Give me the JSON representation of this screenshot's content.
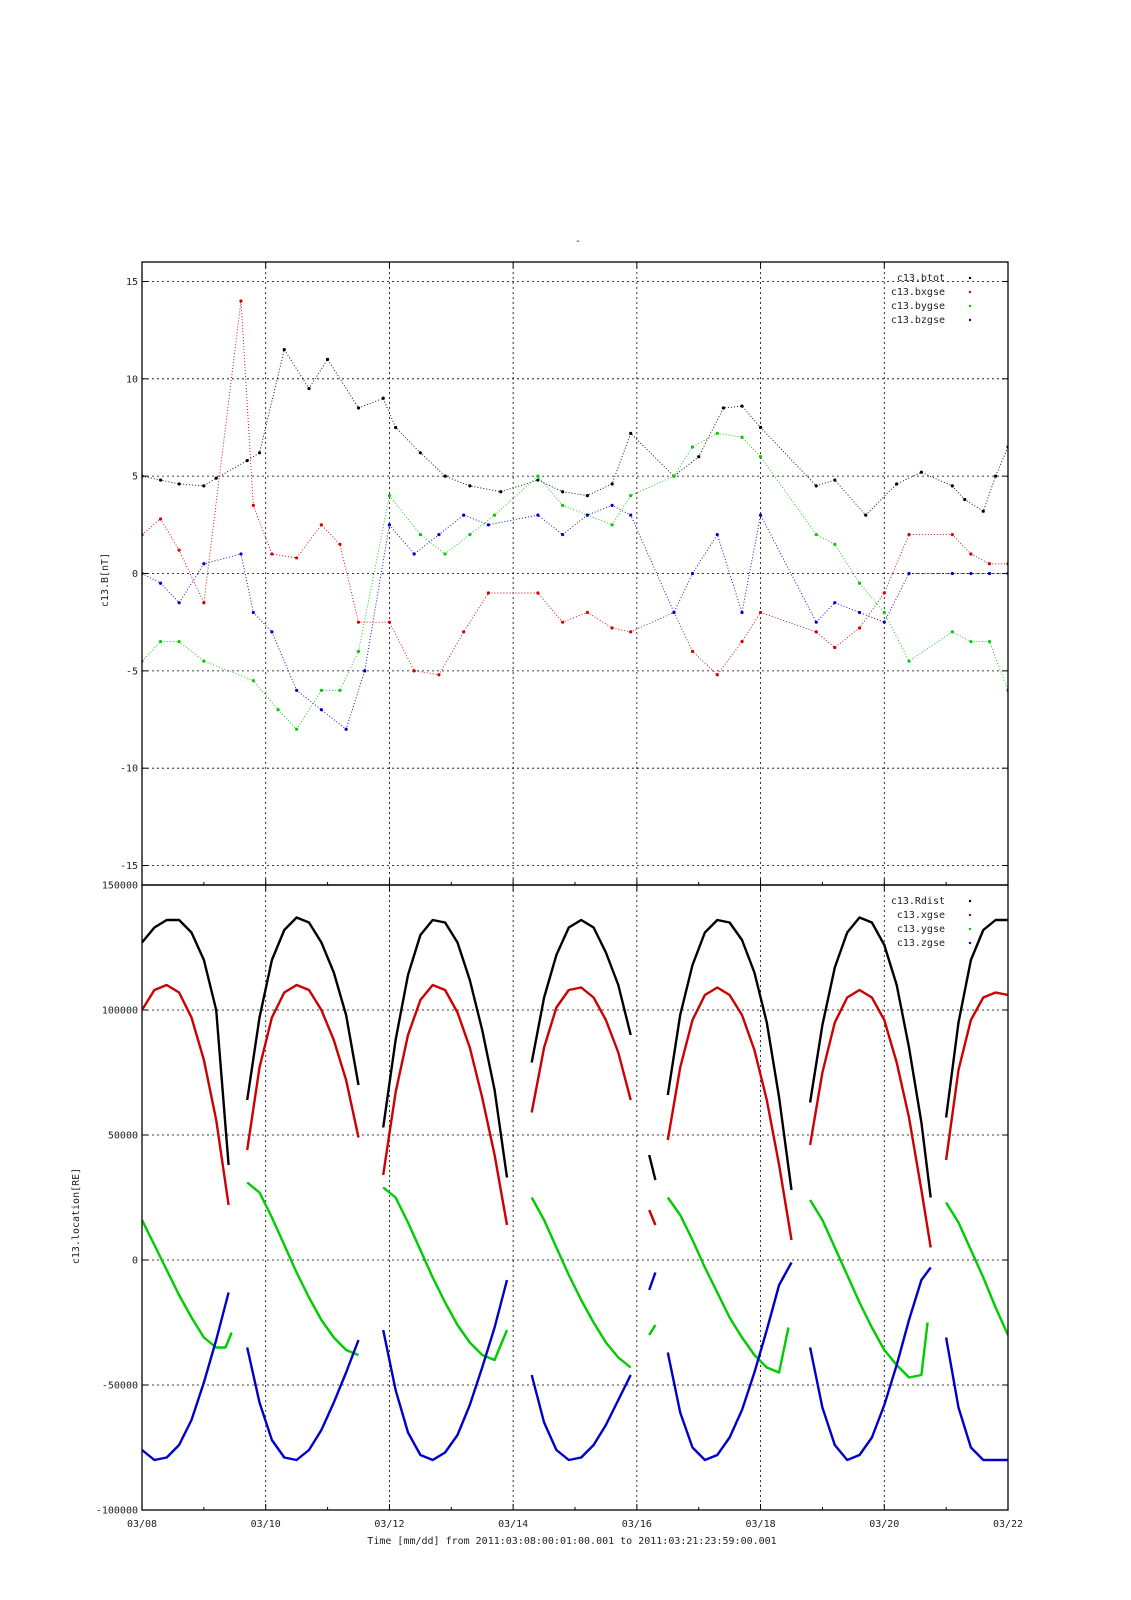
{
  "figure": {
    "title_mark": "-",
    "time_axis": {
      "tick_labels": [
        "03/08",
        "03/10",
        "03/12",
        "03/14",
        "03/16",
        "03/18",
        "03/20",
        "03/22"
      ],
      "label": "Time [mm/dd]  from 2011:03:08:00:01:00.001  to  2011:03:21:23:59:00.001",
      "start_day": 8,
      "end_day": 22
    }
  },
  "chart_data": [
    {
      "type": "scatter",
      "ylabel": "c13.B[nT]",
      "ylim": [
        -16,
        16
      ],
      "y_ticks": [
        -15,
        -10,
        -5,
        0,
        5,
        10,
        15
      ],
      "y_tick_labels": [
        "-15",
        "-10",
        "-5",
        "0",
        "5",
        "10",
        "15"
      ],
      "grid": true,
      "legend_position": "top-right",
      "series": [
        {
          "name": "c13.btot",
          "color": "#000000",
          "x": [
            8.0,
            8.3,
            8.6,
            9.0,
            9.2,
            9.7,
            9.9,
            10.3,
            10.7,
            11.0,
            11.5,
            11.9,
            12.1,
            12.5,
            12.9,
            13.3,
            13.8,
            14.4,
            14.8,
            15.2,
            15.6,
            15.9,
            16.6,
            17.0,
            17.4,
            17.7,
            18.0,
            18.9,
            19.2,
            19.7,
            20.2,
            20.6,
            21.1,
            21.3,
            21.6,
            21.8,
            22.0
          ],
          "y": [
            5.0,
            4.8,
            4.6,
            4.5,
            4.9,
            5.8,
            6.2,
            11.5,
            9.5,
            11.0,
            8.5,
            9.0,
            7.5,
            6.2,
            5.0,
            4.5,
            4.2,
            4.8,
            4.2,
            4.0,
            4.6,
            7.2,
            5.0,
            6.0,
            8.5,
            8.6,
            7.5,
            4.5,
            4.8,
            3.0,
            4.6,
            5.2,
            4.5,
            3.8,
            3.2,
            5.0,
            6.5
          ]
        },
        {
          "name": "c13.bxgse",
          "color": "#d40000",
          "x": [
            8.0,
            8.3,
            8.6,
            9.0,
            9.6,
            9.8,
            10.1,
            10.5,
            10.9,
            11.2,
            11.5,
            12.0,
            12.4,
            12.8,
            13.2,
            13.6,
            14.4,
            14.8,
            15.2,
            15.6,
            15.9,
            16.6,
            16.9,
            17.3,
            17.7,
            18.0,
            18.9,
            19.2,
            19.6,
            20.0,
            20.4,
            21.1,
            21.4,
            21.7,
            22.0
          ],
          "y": [
            2.0,
            2.8,
            1.2,
            -1.5,
            14.0,
            3.5,
            1.0,
            0.8,
            2.5,
            1.5,
            -2.5,
            -2.5,
            -5.0,
            -5.2,
            -3.0,
            -1.0,
            -1.0,
            -2.5,
            -2.0,
            -2.8,
            -3.0,
            -2.0,
            -4.0,
            -5.2,
            -3.5,
            -2.0,
            -3.0,
            -3.8,
            -2.8,
            -1.0,
            2.0,
            2.0,
            1.0,
            0.5,
            0.5
          ]
        },
        {
          "name": "c13.bygse",
          "color": "#00cc00",
          "x": [
            8.0,
            8.3,
            8.6,
            9.0,
            9.8,
            10.2,
            10.5,
            10.9,
            11.2,
            11.5,
            12.0,
            12.5,
            12.9,
            13.3,
            13.7,
            14.4,
            14.8,
            15.2,
            15.6,
            15.9,
            16.6,
            16.9,
            17.3,
            17.7,
            18.0,
            18.9,
            19.2,
            19.6,
            20.0,
            20.4,
            21.1,
            21.4,
            21.7,
            22.0
          ],
          "y": [
            -4.5,
            -3.5,
            -3.5,
            -4.5,
            -5.5,
            -7.0,
            -8.0,
            -6.0,
            -6.0,
            -4.0,
            4.0,
            2.0,
            1.0,
            2.0,
            3.0,
            5.0,
            3.5,
            3.0,
            2.5,
            4.0,
            5.0,
            6.5,
            7.2,
            7.0,
            6.0,
            2.0,
            1.5,
            -0.5,
            -2.0,
            -4.5,
            -3.0,
            -3.5,
            -3.5,
            -6.0
          ]
        },
        {
          "name": "c13.bzgse",
          "color": "#0000cc",
          "x": [
            8.0,
            8.3,
            8.6,
            9.0,
            9.6,
            9.8,
            10.1,
            10.5,
            10.9,
            11.3,
            11.6,
            12.0,
            12.4,
            12.8,
            13.2,
            13.6,
            14.4,
            14.8,
            15.2,
            15.6,
            15.9,
            16.6,
            16.9,
            17.3,
            17.7,
            18.0,
            18.9,
            19.2,
            19.6,
            20.0,
            20.4,
            21.1,
            21.4,
            21.7,
            22.0
          ],
          "y": [
            0.0,
            -0.5,
            -1.5,
            0.5,
            1.0,
            -2.0,
            -3.0,
            -6.0,
            -7.0,
            -8.0,
            -5.0,
            2.5,
            1.0,
            2.0,
            3.0,
            2.5,
            3.0,
            2.0,
            3.0,
            3.5,
            3.0,
            -2.0,
            0.0,
            2.0,
            -2.0,
            3.0,
            -2.5,
            -1.5,
            -2.0,
            -2.5,
            0.0,
            0.0,
            0.0,
            0.0,
            0.0
          ]
        }
      ]
    },
    {
      "type": "scatter",
      "ylabel": "c13.location[RE]",
      "ylim": [
        -100000,
        150000
      ],
      "y_ticks": [
        -100000,
        -50000,
        0,
        50000,
        100000,
        150000
      ],
      "y_tick_labels": [
        "-100000",
        "-50000",
        "0",
        "50000",
        "100000",
        "150000"
      ],
      "grid": true,
      "legend_position": "top-right",
      "series": [
        {
          "name": "c13.Rdist",
          "color": "#000000",
          "x": [
            8.0,
            8.2,
            8.4,
            8.6,
            8.8,
            9.0,
            9.2,
            9.4,
            null,
            9.7,
            9.9,
            10.1,
            10.3,
            10.5,
            10.7,
            10.9,
            11.1,
            11.3,
            11.5,
            null,
            11.9,
            12.1,
            12.3,
            12.5,
            12.7,
            12.9,
            13.1,
            13.3,
            13.5,
            13.7,
            13.9,
            null,
            14.3,
            14.5,
            14.7,
            14.9,
            15.1,
            15.3,
            15.5,
            15.7,
            15.9,
            null,
            16.2,
            16.3,
            null,
            16.5,
            16.7,
            16.9,
            17.1,
            17.3,
            17.5,
            17.7,
            17.9,
            18.1,
            18.3,
            18.5,
            null,
            18.8,
            19.0,
            19.2,
            19.4,
            19.6,
            19.8,
            20.0,
            20.2,
            20.4,
            20.6,
            20.75,
            null,
            21.0,
            21.2,
            21.4,
            21.6,
            21.8,
            22.0
          ],
          "y": [
            127000,
            133000,
            136000,
            136000,
            131000,
            120000,
            100000,
            38000,
            null,
            64000,
            97000,
            120000,
            132000,
            137000,
            135000,
            127000,
            115000,
            98000,
            70000,
            null,
            53000,
            88000,
            114000,
            130000,
            136000,
            135000,
            127000,
            112000,
            92000,
            68000,
            33000,
            null,
            79000,
            105000,
            122000,
            133000,
            136000,
            133000,
            123000,
            110000,
            90000,
            null,
            42000,
            32000,
            null,
            66000,
            98000,
            118000,
            131000,
            136000,
            135000,
            128000,
            115000,
            95000,
            65000,
            28000,
            null,
            63000,
            94000,
            117000,
            131000,
            137000,
            135000,
            126000,
            110000,
            85000,
            55000,
            25000,
            null,
            57000,
            95000,
            120000,
            132000,
            136000,
            136000
          ]
        },
        {
          "name": "c13.xgse",
          "color": "#cc0000",
          "x": [
            8.0,
            8.2,
            8.4,
            8.6,
            8.8,
            9.0,
            9.2,
            9.4,
            null,
            9.7,
            9.9,
            10.1,
            10.3,
            10.5,
            10.7,
            10.9,
            11.1,
            11.3,
            11.5,
            null,
            11.9,
            12.1,
            12.3,
            12.5,
            12.7,
            12.9,
            13.1,
            13.3,
            13.5,
            13.7,
            13.9,
            null,
            14.3,
            14.5,
            14.7,
            14.9,
            15.1,
            15.3,
            15.5,
            15.7,
            15.9,
            null,
            16.2,
            16.3,
            null,
            16.5,
            16.7,
            16.9,
            17.1,
            17.3,
            17.5,
            17.7,
            17.9,
            18.1,
            18.3,
            18.5,
            null,
            18.8,
            19.0,
            19.2,
            19.4,
            19.6,
            19.8,
            20.0,
            20.2,
            20.4,
            20.6,
            20.75,
            null,
            21.0,
            21.2,
            21.4,
            21.6,
            21.8,
            22.0
          ],
          "y": [
            100000,
            108000,
            110000,
            107000,
            97000,
            80000,
            56000,
            22000,
            null,
            44000,
            77000,
            97000,
            107000,
            110000,
            108000,
            100000,
            88000,
            72000,
            49000,
            null,
            34000,
            67000,
            90000,
            104000,
            110000,
            108000,
            99000,
            85000,
            65000,
            42000,
            14000,
            null,
            59000,
            85000,
            101000,
            108000,
            109000,
            105000,
            96000,
            83000,
            64000,
            null,
            20000,
            14000,
            null,
            48000,
            77000,
            96000,
            106000,
            109000,
            106000,
            98000,
            84000,
            64000,
            38000,
            8000,
            null,
            46000,
            75000,
            95000,
            105000,
            108000,
            105000,
            96000,
            79000,
            57000,
            28000,
            5000,
            null,
            40000,
            76000,
            96000,
            105000,
            107000,
            106000
          ]
        },
        {
          "name": "c13.ygse",
          "color": "#00cc00",
          "x": [
            8.0,
            8.2,
            8.4,
            8.6,
            8.8,
            9.0,
            9.2,
            9.35,
            9.45,
            null,
            9.7,
            9.9,
            10.1,
            10.3,
            10.5,
            10.7,
            10.9,
            11.1,
            11.3,
            11.5,
            null,
            11.9,
            12.1,
            12.3,
            12.5,
            12.7,
            12.9,
            13.1,
            13.3,
            13.5,
            13.7,
            13.9,
            null,
            14.3,
            14.5,
            14.7,
            14.9,
            15.1,
            15.3,
            15.5,
            15.7,
            15.9,
            null,
            16.2,
            16.3,
            null,
            16.5,
            16.7,
            16.9,
            17.1,
            17.3,
            17.5,
            17.7,
            17.9,
            18.1,
            18.3,
            18.45,
            null,
            18.8,
            19.0,
            19.2,
            19.4,
            19.6,
            19.8,
            20.0,
            20.2,
            20.4,
            20.6,
            20.7,
            null,
            21.0,
            21.2,
            21.4,
            21.6,
            21.8,
            22.0
          ],
          "y": [
            16000,
            6000,
            -4000,
            -14000,
            -23000,
            -31000,
            -35000,
            -35000,
            -29000,
            null,
            31000,
            27000,
            17000,
            6000,
            -5000,
            -15000,
            -24000,
            -31000,
            -36000,
            -38000,
            null,
            29000,
            25000,
            15000,
            4000,
            -7000,
            -17000,
            -26000,
            -33000,
            -38000,
            -40000,
            -28000,
            null,
            25000,
            16000,
            5000,
            -6000,
            -16000,
            -25000,
            -33000,
            -39000,
            -43000,
            null,
            -30000,
            -26000,
            null,
            25000,
            18000,
            8000,
            -3000,
            -13000,
            -23000,
            -31000,
            -38000,
            -43000,
            -45000,
            -27000,
            null,
            24000,
            16000,
            5000,
            -6000,
            -17000,
            -27000,
            -36000,
            -42000,
            -47000,
            -46000,
            -25000,
            null,
            23000,
            15000,
            4000,
            -7000,
            -19000,
            -30000
          ]
        },
        {
          "name": "c13.zgse",
          "color": "#0000cc",
          "x": [
            8.0,
            8.2,
            8.4,
            8.6,
            8.8,
            9.0,
            9.2,
            9.4,
            null,
            9.7,
            9.9,
            10.1,
            10.3,
            10.5,
            10.7,
            10.9,
            11.1,
            11.3,
            11.5,
            null,
            11.9,
            12.1,
            12.3,
            12.5,
            12.7,
            12.9,
            13.1,
            13.3,
            13.5,
            13.7,
            13.9,
            null,
            14.3,
            14.5,
            14.7,
            14.9,
            15.1,
            15.3,
            15.5,
            15.7,
            15.9,
            null,
            16.2,
            16.3,
            null,
            16.5,
            16.7,
            16.9,
            17.1,
            17.3,
            17.5,
            17.7,
            17.9,
            18.1,
            18.3,
            18.5,
            null,
            18.8,
            19.0,
            19.2,
            19.4,
            19.6,
            19.8,
            20.0,
            20.2,
            20.4,
            20.6,
            20.75,
            null,
            21.0,
            21.2,
            21.4,
            21.6,
            21.8,
            22.0
          ],
          "y": [
            -76000,
            -80000,
            -79000,
            -74000,
            -64000,
            -49000,
            -32000,
            -13000,
            null,
            -35000,
            -57000,
            -72000,
            -79000,
            -80000,
            -76000,
            -68000,
            -57000,
            -45000,
            -32000,
            null,
            -28000,
            -52000,
            -69000,
            -78000,
            -80000,
            -77000,
            -70000,
            -58000,
            -43000,
            -27000,
            -8000,
            null,
            -46000,
            -65000,
            -76000,
            -80000,
            -79000,
            -74000,
            -66000,
            -56000,
            -46000,
            null,
            -12000,
            -5000,
            null,
            -37000,
            -61000,
            -75000,
            -80000,
            -78000,
            -71000,
            -60000,
            -45000,
            -28000,
            -10000,
            -1000,
            null,
            -35000,
            -59000,
            -74000,
            -80000,
            -78000,
            -71000,
            -58000,
            -42000,
            -24000,
            -8000,
            -3000,
            null,
            -31000,
            -59000,
            -75000,
            -80000,
            -80000,
            -80000
          ]
        }
      ]
    }
  ]
}
